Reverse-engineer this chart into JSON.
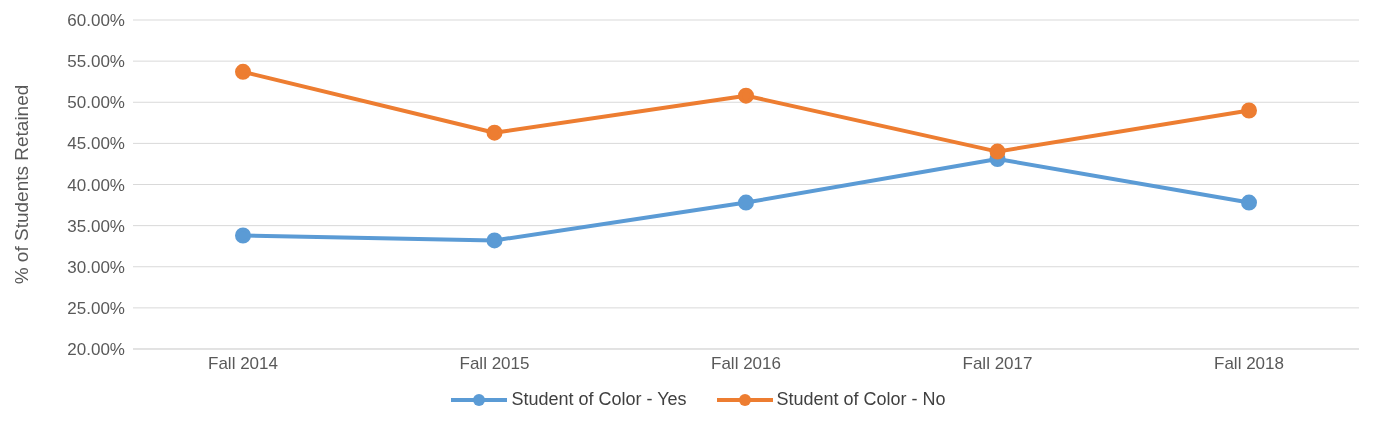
{
  "chart_data": {
    "type": "line",
    "ylabel": "% of Students Retained",
    "categories": [
      "Fall 2014",
      "Fall 2015",
      "Fall 2016",
      "Fall 2017",
      "Fall 2018"
    ],
    "series": [
      {
        "name": "Student of Color - Yes",
        "color": "#5b9bd5",
        "values": [
          33.8,
          33.2,
          37.8,
          43.1,
          37.8
        ]
      },
      {
        "name": "Student of Color - No",
        "color": "#ed7d31",
        "values": [
          53.7,
          46.3,
          50.8,
          44.0,
          49.0
        ]
      }
    ],
    "ylim": [
      20,
      60
    ],
    "yticks": [
      {
        "value": 20,
        "label": "20.00%"
      },
      {
        "value": 25,
        "label": "25.00%"
      },
      {
        "value": 30,
        "label": "30.00%"
      },
      {
        "value": 35,
        "label": "35.00%"
      },
      {
        "value": 40,
        "label": "40.00%"
      },
      {
        "value": 45,
        "label": "45.00%"
      },
      {
        "value": 50,
        "label": "50.00%"
      },
      {
        "value": 55,
        "label": "55.00%"
      },
      {
        "value": 60,
        "label": "60.00%"
      }
    ],
    "grid": "y",
    "legend": "bottom",
    "marker": "circle",
    "line_style": "solid"
  }
}
